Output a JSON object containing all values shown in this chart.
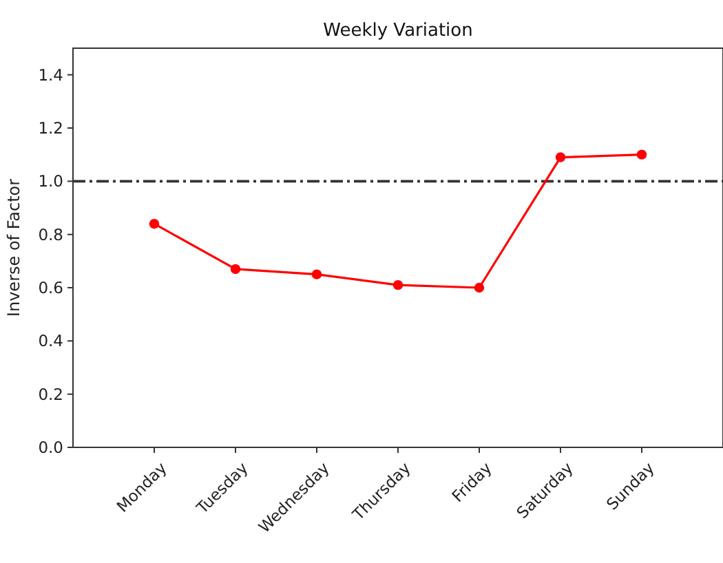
{
  "chart_data": {
    "type": "line",
    "title": "Weekly Variation",
    "ylabel": "Inverse of Factor",
    "categories": [
      "Monday",
      "Tuesday",
      "Wednesday",
      "Thursday",
      "Friday",
      "Saturday",
      "Sunday"
    ],
    "series": [
      {
        "color": "#ff0000",
        "values": [
          0.84,
          0.67,
          0.65,
          0.61,
          0.6,
          1.09,
          1.1
        ]
      }
    ],
    "ylim": [
      0,
      1.5
    ],
    "yticks": [
      {
        "value": 0,
        "label": "0.0"
      },
      {
        "value": 0.2,
        "label": "0.2"
      },
      {
        "value": 0.4,
        "label": "0.4"
      },
      {
        "value": 0.6,
        "label": "0.6"
      },
      {
        "value": 0.8,
        "label": "0.8"
      },
      {
        "value": 1,
        "label": "1.0"
      },
      {
        "value": 1.2,
        "label": "1.2"
      },
      {
        "value": 1.4,
        "label": "1.4"
      }
    ],
    "ref_lines": [
      {
        "axis": "y",
        "value": 1,
        "color": "#333333",
        "line_style": "dashdot"
      }
    ],
    "marker": "circle",
    "line_style": "solid",
    "grid": false
  }
}
